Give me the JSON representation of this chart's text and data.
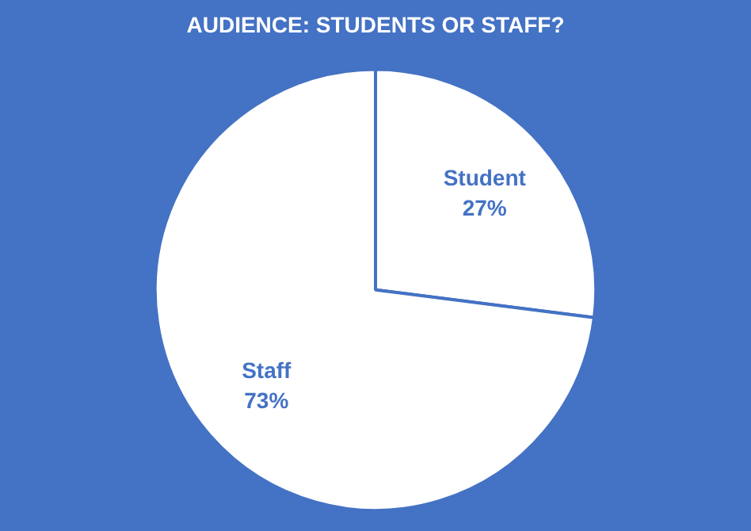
{
  "chart_data": {
    "type": "pie",
    "title": "AUDIENCE: STUDENTS OR STAFF?",
    "categories": [
      "Student",
      "Staff"
    ],
    "values": [
      27,
      73
    ],
    "value_labels": [
      "27%",
      "73%"
    ],
    "colors": [
      "#ffffff",
      "#ffffff"
    ]
  }
}
